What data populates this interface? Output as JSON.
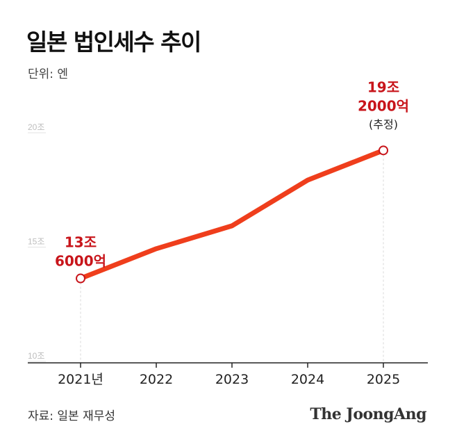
{
  "title": "일본 법인세수 추이",
  "unit": "단위: 엔",
  "source": "자료: 일본 재무성",
  "brand": "The JoongAng",
  "colors": {
    "line": "#ef3e1c",
    "annotation": "#c8151b",
    "axis": "#222222",
    "grid": "#d8d8d8"
  },
  "chart_data": {
    "type": "line",
    "categories": [
      "2021년",
      "2022",
      "2023",
      "2024",
      "2025"
    ],
    "series": [
      {
        "values": [
          13.6,
          14.9,
          15.9,
          17.9,
          19.2
        ]
      }
    ],
    "ylim": [
      10,
      20
    ],
    "yticks": [
      {
        "value": 20,
        "label": "20조"
      },
      {
        "value": 15,
        "label": "15조"
      },
      {
        "value": 10,
        "label": "10조"
      }
    ],
    "annotations": [
      {
        "index": 0,
        "lines": [
          "13조",
          "6000억"
        ]
      },
      {
        "index": 4,
        "lines": [
          "19조",
          "2000억"
        ],
        "note": "(추정)"
      }
    ]
  }
}
